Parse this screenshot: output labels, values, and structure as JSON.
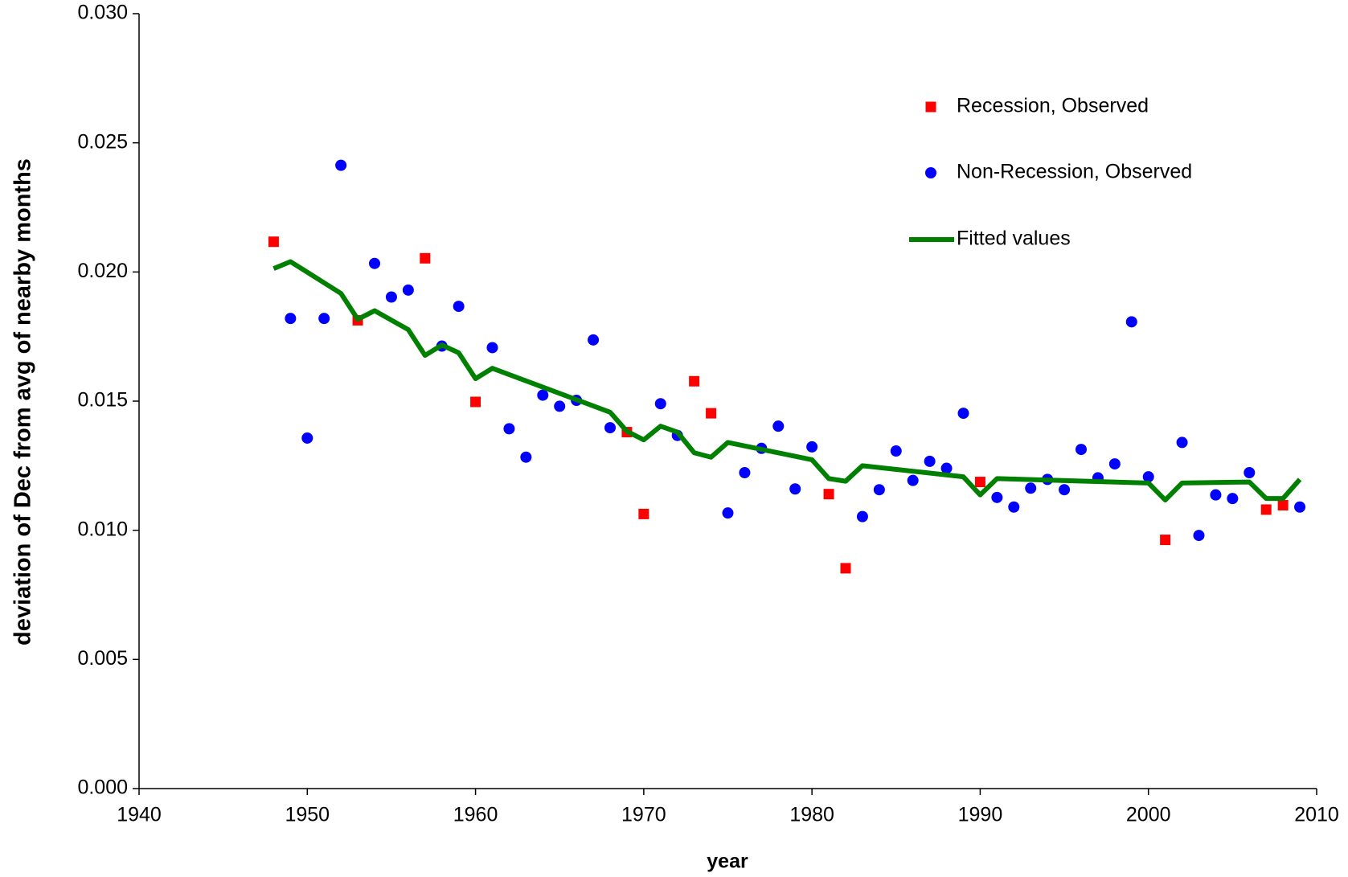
{
  "chart_data": {
    "type": "scatter",
    "xlabel": "year",
    "ylabel": "deviation of Dec from avg of nearby months",
    "xlim": [
      1940,
      2010
    ],
    "xticks": [
      1940,
      1950,
      1960,
      1970,
      1980,
      1990,
      2000,
      2010
    ],
    "ylim": [
      0,
      0.03
    ],
    "yticks": [
      {
        "value": 0,
        "label": "0.000"
      },
      {
        "value": 0.005,
        "label": "0.005"
      },
      {
        "value": 0.01,
        "label": "0.010"
      },
      {
        "value": 0.015,
        "label": "0.015"
      },
      {
        "value": 0.02,
        "label": "0.020"
      },
      {
        "value": 0.025,
        "label": "0.025"
      },
      {
        "value": 0.03,
        "label": "0.030"
      }
    ],
    "legend": "upper right",
    "series": [
      {
        "name": "Recession, Observed",
        "marker": "square",
        "color": "#ff0000",
        "x": [
          1948,
          1953,
          1957,
          1960,
          1969,
          1970,
          1973,
          1974,
          1981,
          1982,
          1990,
          2001,
          2007,
          2008
        ],
        "values": [
          0.02117,
          0.01813,
          0.02053,
          0.01497,
          0.0138,
          0.01063,
          0.01577,
          0.01453,
          0.0114,
          0.00853,
          0.01187,
          0.00963,
          0.0108,
          0.01097
        ]
      },
      {
        "name": "Non-Recession, Observed",
        "marker": "circle",
        "color": "#0000ff",
        "x": [
          1949,
          1950,
          1951,
          1952,
          1954,
          1955,
          1956,
          1958,
          1959,
          1961,
          1962,
          1963,
          1964,
          1965,
          1966,
          1967,
          1968,
          1971,
          1972,
          1975,
          1976,
          1977,
          1978,
          1979,
          1980,
          1983,
          1984,
          1985,
          1986,
          1987,
          1988,
          1989,
          1991,
          1992,
          1993,
          1994,
          1995,
          1996,
          1997,
          1998,
          1999,
          2000,
          2002,
          2003,
          2004,
          2005,
          2006,
          2009
        ],
        "values": [
          0.0182,
          0.01357,
          0.0182,
          0.02413,
          0.02033,
          0.01903,
          0.0193,
          0.01713,
          0.01867,
          0.01707,
          0.01393,
          0.01283,
          0.01523,
          0.0148,
          0.01503,
          0.01737,
          0.01397,
          0.0149,
          0.01367,
          0.01067,
          0.01223,
          0.01317,
          0.01403,
          0.0116,
          0.01323,
          0.01053,
          0.01157,
          0.01307,
          0.01193,
          0.01267,
          0.0124,
          0.01453,
          0.01127,
          0.0109,
          0.01163,
          0.01197,
          0.01157,
          0.01313,
          0.01203,
          0.01257,
          0.01807,
          0.01207,
          0.0134,
          0.0098,
          0.01137,
          0.01123,
          0.01223,
          0.0109
        ]
      },
      {
        "name": "Fitted values",
        "marker": "line",
        "color": "#008000",
        "x": [
          1948,
          1949,
          1952,
          1953,
          1954,
          1956,
          1957,
          1958,
          1959,
          1960,
          1961,
          1968,
          1969,
          1970,
          1971,
          1972,
          1973,
          1974,
          1975,
          1980,
          1981,
          1982,
          1983,
          1989,
          1990,
          1991,
          2000,
          2001,
          2002,
          2006,
          2007,
          2008,
          2009
        ],
        "values": [
          0.02013,
          0.0204,
          0.01917,
          0.01817,
          0.0185,
          0.01777,
          0.01677,
          0.01717,
          0.01687,
          0.01587,
          0.01627,
          0.01457,
          0.01383,
          0.0135,
          0.01403,
          0.0138,
          0.013,
          0.01283,
          0.0134,
          0.01273,
          0.012,
          0.0119,
          0.0125,
          0.01207,
          0.01137,
          0.012,
          0.01183,
          0.01117,
          0.01183,
          0.01187,
          0.01123,
          0.01123,
          0.01197
        ]
      }
    ]
  }
}
